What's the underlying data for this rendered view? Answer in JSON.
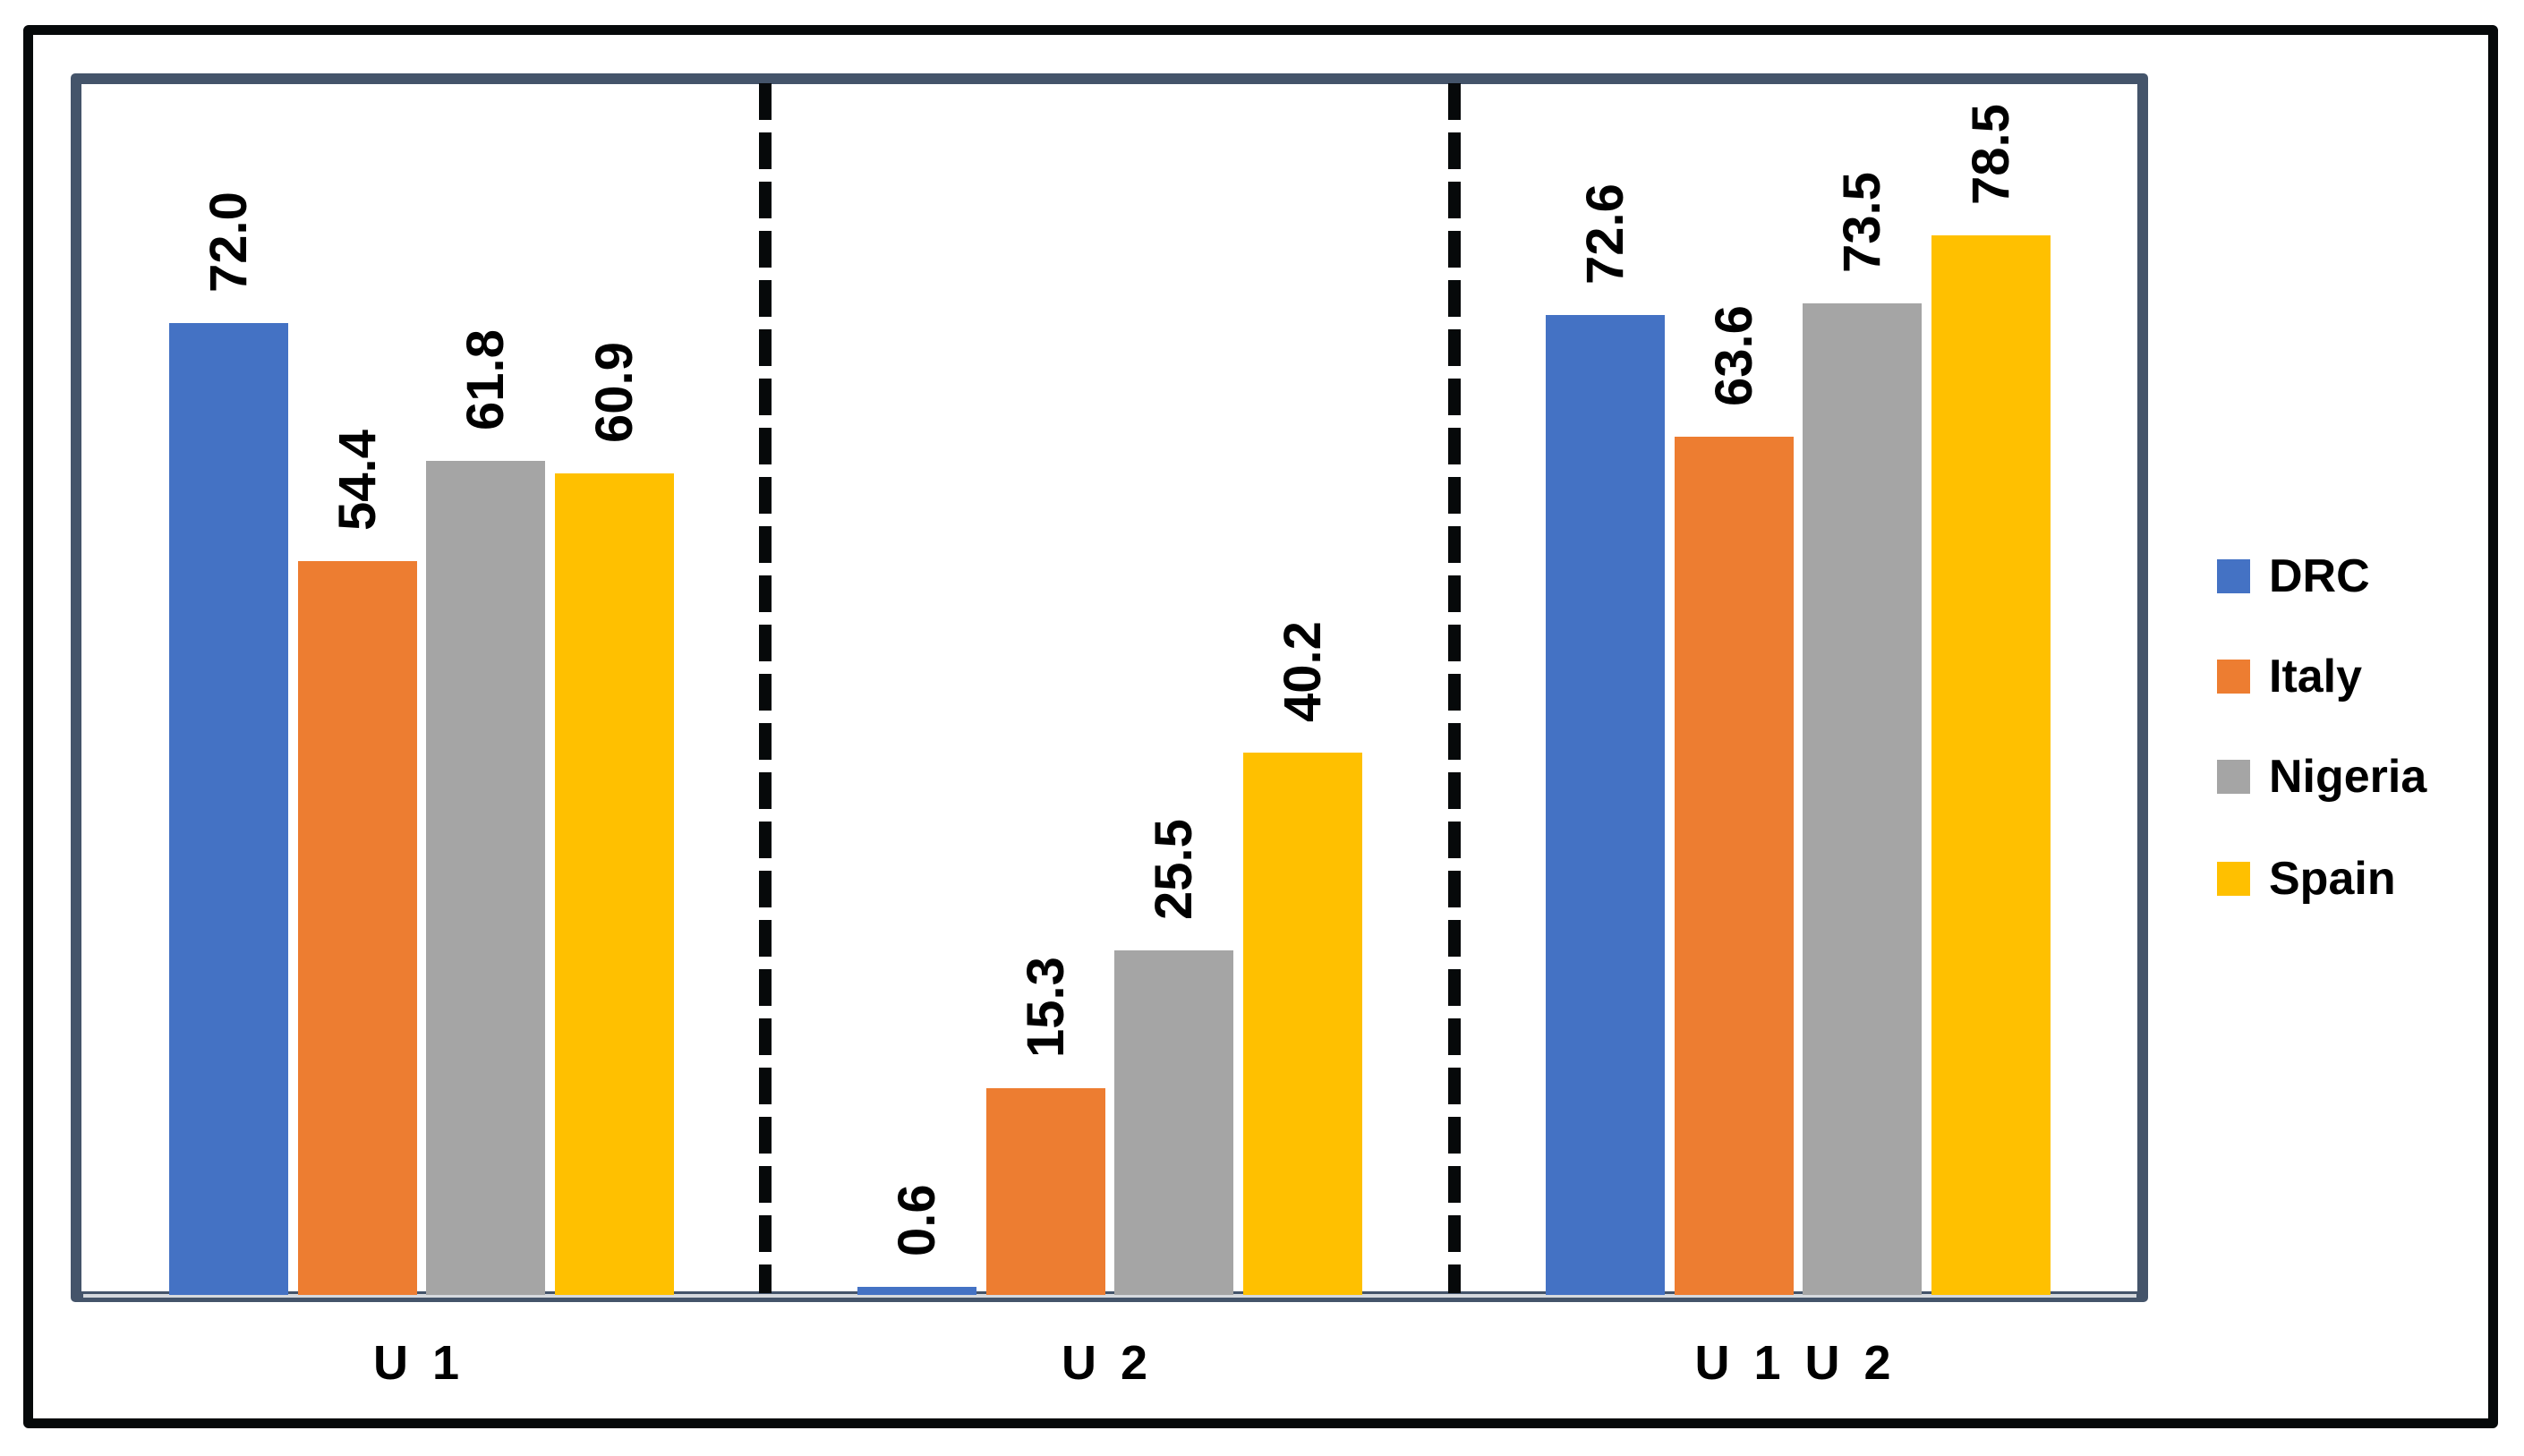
{
  "chart_data": {
    "type": "bar",
    "title": "",
    "xlabel": "",
    "ylabel": "",
    "categories": [
      "U1",
      "U2",
      "U1U2"
    ],
    "category_display": [
      "U 1",
      "U 2",
      "U 1 U 2"
    ],
    "series": [
      {
        "name": "DRC",
        "color": "#4472C4",
        "values": [
          72.0,
          0.6,
          72.6
        ],
        "labels": [
          "72.0",
          "0.6",
          "72.6"
        ]
      },
      {
        "name": "Italy",
        "color": "#ED7D31",
        "values": [
          54.4,
          15.3,
          63.6
        ],
        "labels": [
          "54.4",
          "15.3",
          "63.6"
        ]
      },
      {
        "name": "Nigeria",
        "color": "#A5A5A5",
        "values": [
          61.8,
          25.5,
          73.5
        ],
        "labels": [
          "61.8",
          "25.5",
          "73.5"
        ]
      },
      {
        "name": "Spain",
        "color": "#FFC000",
        "values": [
          60.9,
          40.2,
          78.5
        ],
        "labels": [
          "60.9",
          "40.2",
          "78.5"
        ]
      }
    ],
    "ylim": [
      0,
      90
    ],
    "y_axis_visible": false,
    "grid": false,
    "data_labels": true,
    "data_label_orientation": "vertical",
    "group_separators": "dashed",
    "legend_position": "right"
  },
  "legend": {
    "items": [
      {
        "label": "DRC",
        "color": "#4472C4"
      },
      {
        "label": "Italy",
        "color": "#ED7D31"
      },
      {
        "label": "Nigeria",
        "color": "#A5A5A5"
      },
      {
        "label": "Spain",
        "color": "#FFC000"
      }
    ]
  },
  "colors": {
    "outer_frame": "#06090a",
    "plot_frame": "#44546a",
    "divider": "#06090a",
    "text": "#000000"
  }
}
